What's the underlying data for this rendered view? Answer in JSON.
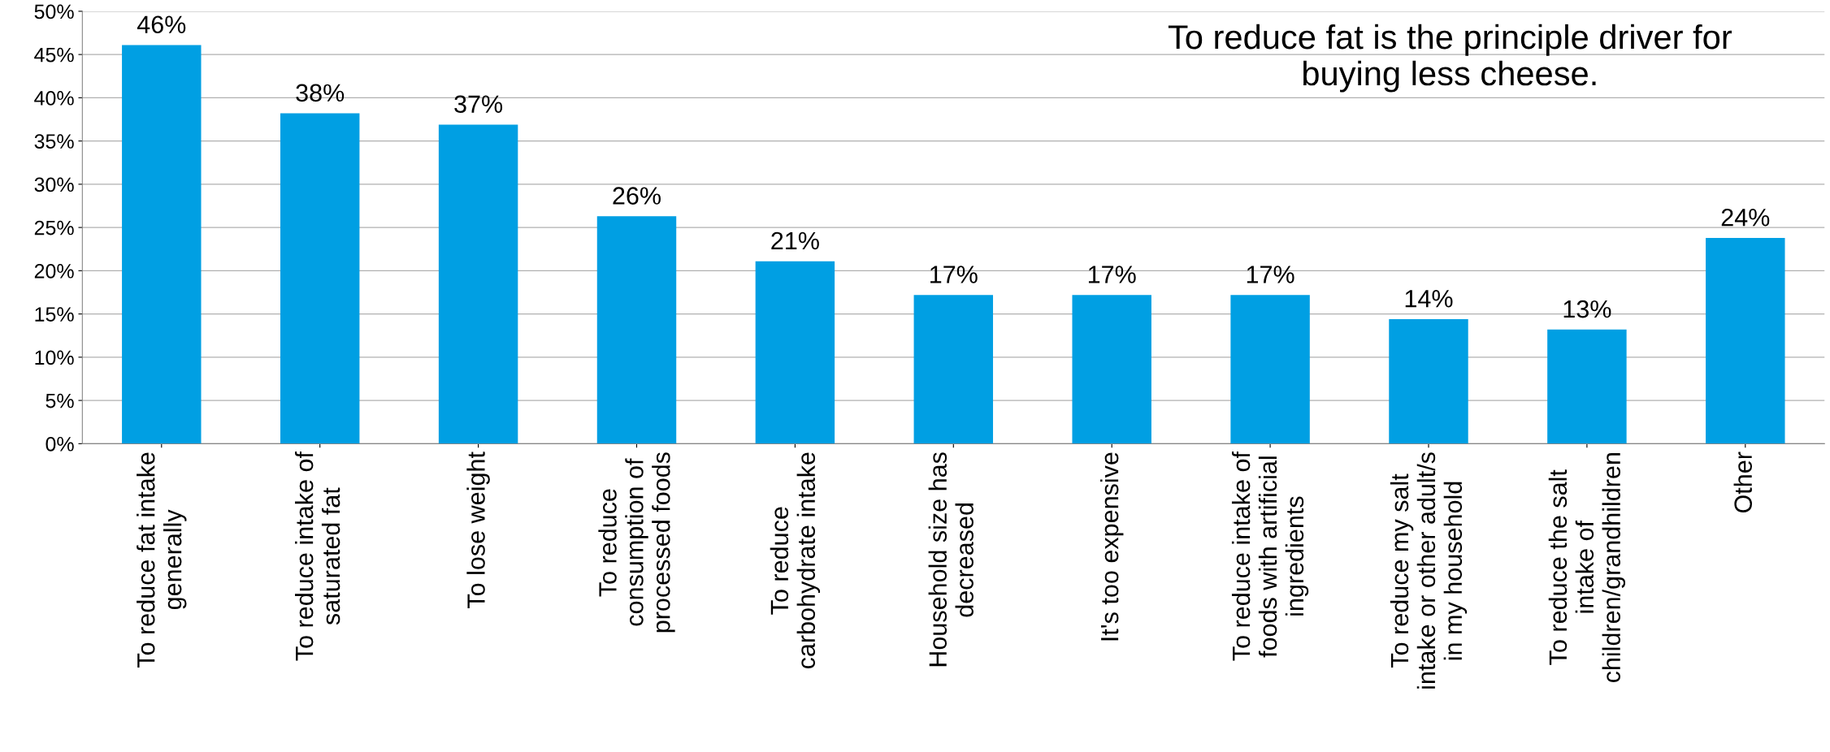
{
  "chart_data": {
    "type": "bar",
    "title": "To reduce fat is the principle driver for\nbuying less cheese.",
    "categories": [
      "To reduce fat intake\ngenerally",
      "To reduce intake of\nsaturated fat",
      "To lose weight",
      "To reduce\nconsumption of\nprocessed foods",
      "To reduce\ncarbohydrate intake",
      "Household size has\ndecreased",
      "It's too expensive",
      "To reduce intake of\nfoods with artificial\ningredients",
      "To reduce my salt\nintake or other adult/s\nin my household",
      "To reduce the salt\nintake of\nchildren/grandhildren",
      "Other"
    ],
    "values": [
      46.1,
      38.2,
      36.9,
      26.3,
      21.1,
      17.2,
      17.2,
      17.2,
      14.4,
      13.2,
      23.8
    ],
    "value_labels": [
      "46%",
      "38%",
      "37%",
      "26%",
      "21%",
      "17%",
      "17%",
      "17%",
      "14%",
      "13%",
      "24%"
    ],
    "color": "#009fe3",
    "ylim": [
      0,
      50
    ],
    "yticks": [
      {
        "value": 0,
        "label": "0%"
      },
      {
        "value": 5,
        "label": "5%"
      },
      {
        "value": 10,
        "label": "10%"
      },
      {
        "value": 15,
        "label": "15%"
      },
      {
        "value": 20,
        "label": "20%"
      },
      {
        "value": 25,
        "label": "25%"
      },
      {
        "value": 30,
        "label": "30%"
      },
      {
        "value": 35,
        "label": "35%"
      },
      {
        "value": 40,
        "label": "40%"
      },
      {
        "value": 45,
        "label": "45%"
      },
      {
        "value": 50,
        "label": "50%"
      }
    ],
    "grid": "y",
    "legend": false
  }
}
